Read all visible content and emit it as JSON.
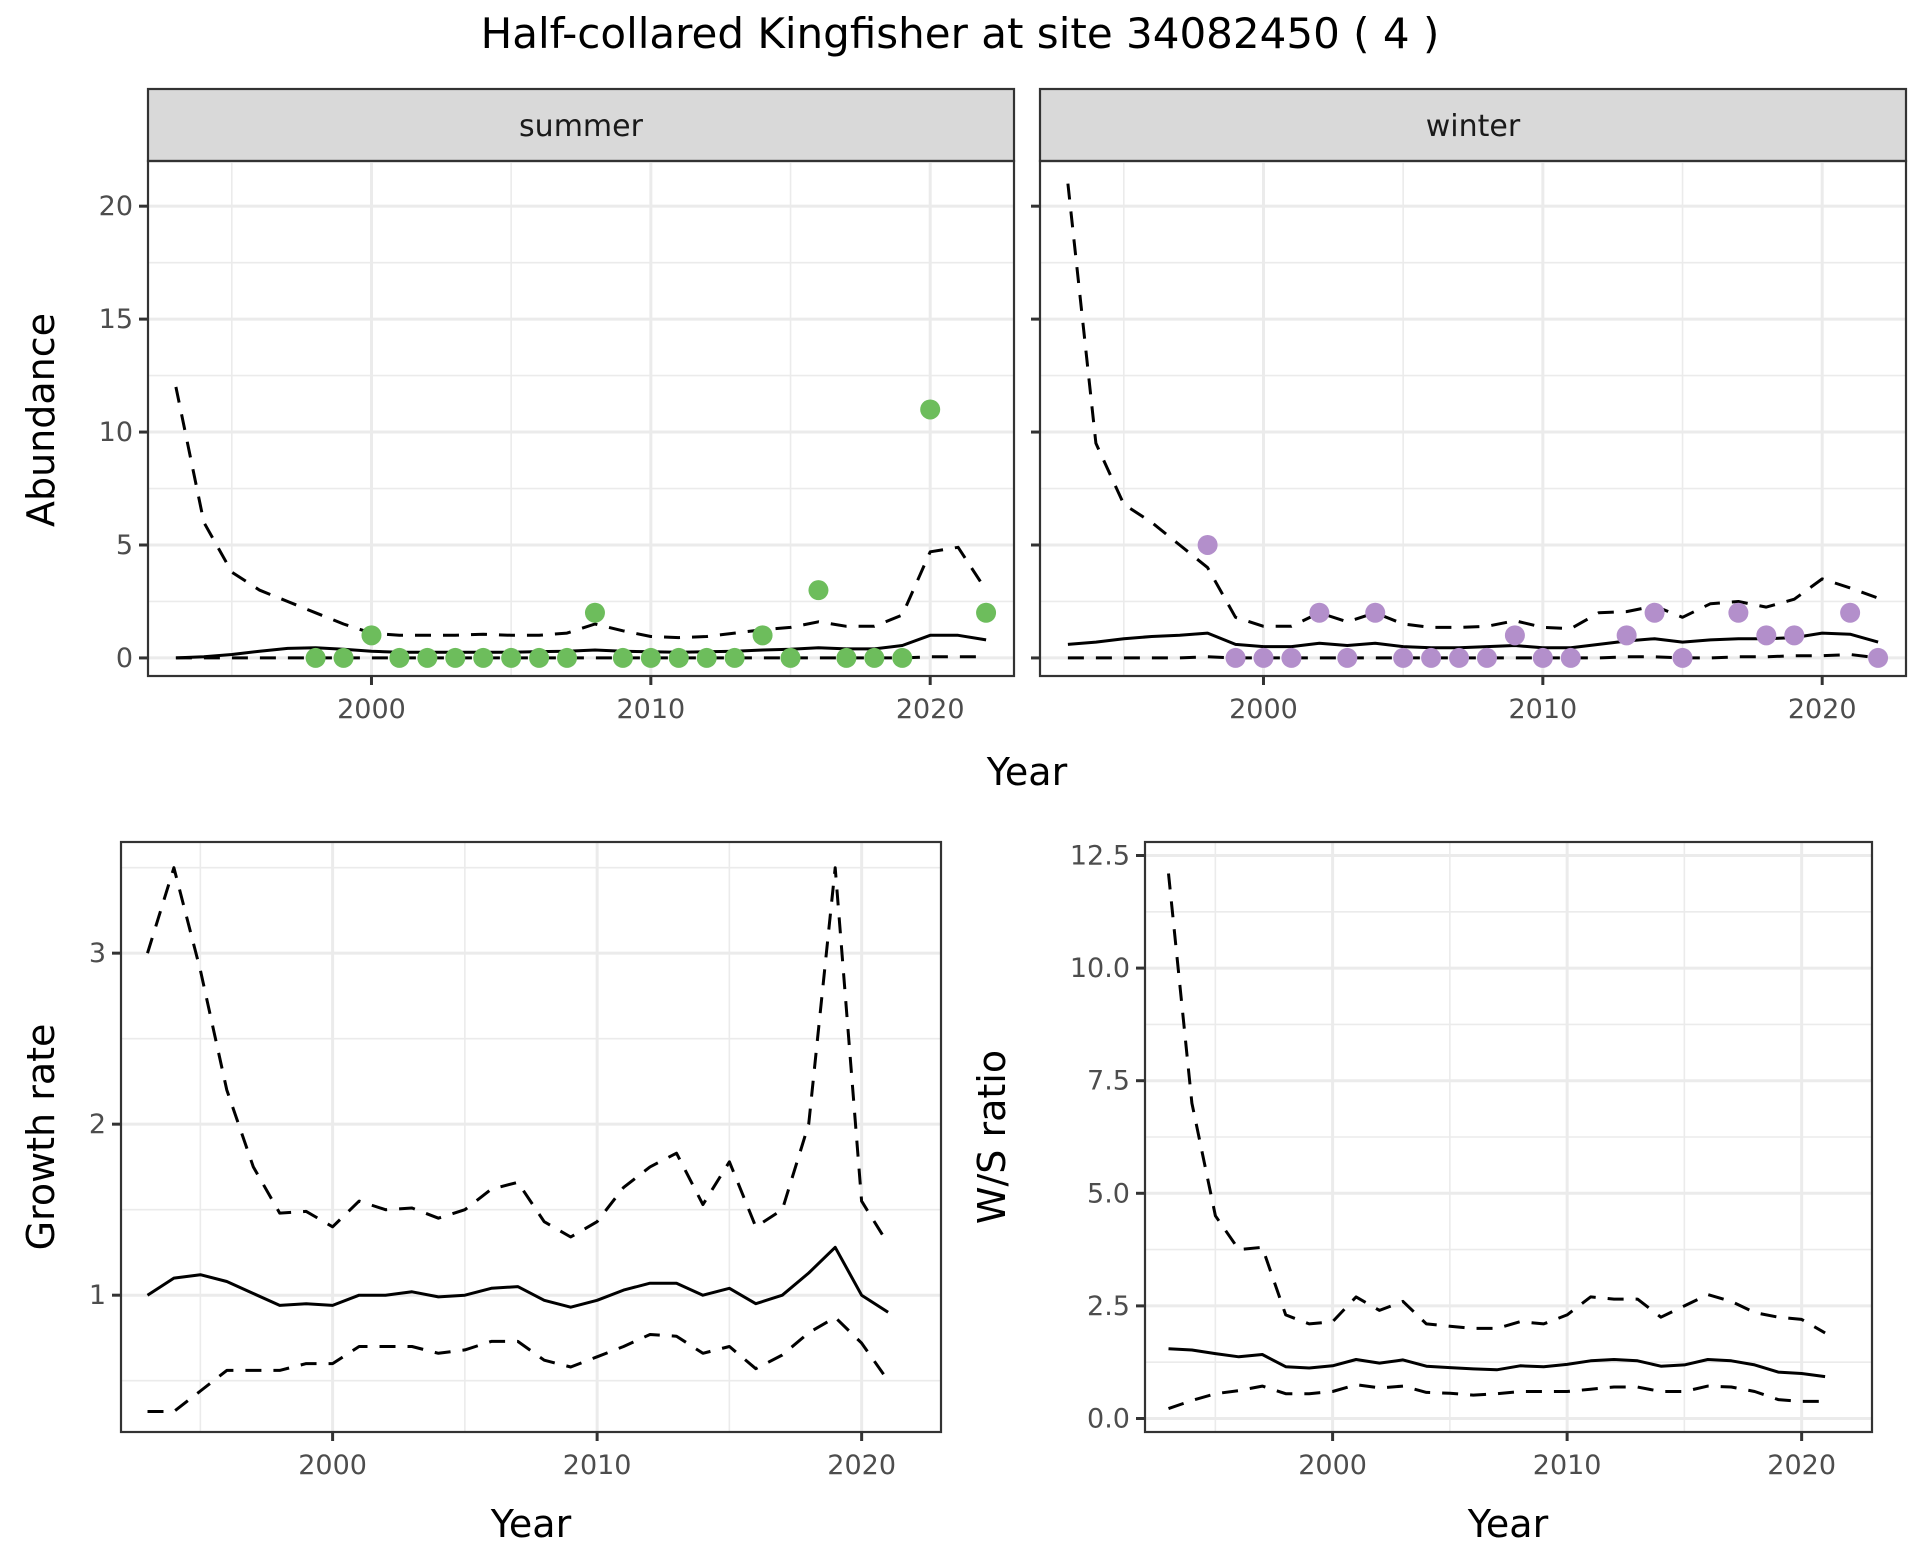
{
  "title": "Half-collared Kingfisher at site 34082450 ( 4 )",
  "colors": {
    "summer_points": "#6dbd5c",
    "winter_points": "#b38fcb",
    "lines": "#000000",
    "strip": "#d9d9d9",
    "grid": "#ebebeb"
  },
  "chart_data": [
    {
      "type": "scatter+line",
      "panel": "abundance",
      "facets": [
        "summer",
        "winter"
      ],
      "xlabel": "Year",
      "ylabel": "Abundance",
      "xlim": [
        1992,
        2023
      ],
      "ylim": [
        -0.8,
        22
      ],
      "xticks": [
        2000,
        2010,
        2020
      ],
      "yticks": [
        0,
        5,
        10,
        15,
        20
      ],
      "grid": true,
      "series": {
        "summer": {
          "points": {
            "x": [
              1998,
              1999,
              2000,
              2001,
              2002,
              2003,
              2004,
              2005,
              2006,
              2007,
              2008,
              2009,
              2010,
              2011,
              2012,
              2013,
              2014,
              2015,
              2016,
              2017,
              2018,
              2019,
              2020,
              2022
            ],
            "y": [
              0,
              0,
              1,
              0,
              0,
              0,
              0,
              0,
              0,
              0,
              2,
              0,
              0,
              0,
              0,
              0,
              1,
              0,
              3,
              0,
              0,
              0,
              11,
              2
            ]
          },
          "mean": {
            "x": [
              1993,
              1994,
              1995,
              1996,
              1997,
              1998,
              1999,
              2000,
              2001,
              2002,
              2003,
              2004,
              2005,
              2006,
              2007,
              2008,
              2009,
              2010,
              2011,
              2012,
              2013,
              2014,
              2015,
              2016,
              2017,
              2018,
              2019,
              2020,
              2021,
              2022
            ],
            "y": [
              0.0,
              0.05,
              0.15,
              0.3,
              0.42,
              0.45,
              0.38,
              0.3,
              0.25,
              0.25,
              0.25,
              0.25,
              0.25,
              0.28,
              0.3,
              0.35,
              0.3,
              0.27,
              0.25,
              0.27,
              0.3,
              0.35,
              0.38,
              0.45,
              0.4,
              0.4,
              0.55,
              1.0,
              1.0,
              0.8
            ]
          },
          "lower": {
            "x": [
              1993,
              1994,
              1995,
              1996,
              1997,
              1998,
              1999,
              2000,
              2001,
              2002,
              2003,
              2004,
              2005,
              2006,
              2007,
              2008,
              2009,
              2010,
              2011,
              2012,
              2013,
              2014,
              2015,
              2016,
              2017,
              2018,
              2019,
              2020,
              2021,
              2022
            ],
            "y": [
              0,
              0,
              0,
              0,
              0,
              0,
              0,
              0,
              0,
              0,
              0,
              0,
              0,
              0,
              0,
              0,
              0,
              0,
              0,
              0,
              0,
              0,
              0,
              0,
              0,
              0,
              0,
              0.05,
              0.05,
              0.05
            ]
          },
          "upper": {
            "x": [
              1993,
              1994,
              1995,
              1996,
              1997,
              1998,
              1999,
              2000,
              2001,
              2002,
              2003,
              2004,
              2005,
              2006,
              2007,
              2008,
              2009,
              2010,
              2011,
              2012,
              2013,
              2014,
              2015,
              2016,
              2017,
              2018,
              2019,
              2020,
              2021,
              2022
            ],
            "y": [
              12.0,
              6.0,
              3.8,
              3.0,
              2.5,
              2.0,
              1.5,
              1.1,
              1.0,
              1.0,
              1.0,
              1.05,
              1.0,
              1.0,
              1.1,
              1.5,
              1.2,
              0.95,
              0.9,
              0.95,
              1.1,
              1.25,
              1.35,
              1.6,
              1.4,
              1.4,
              1.9,
              4.7,
              4.9,
              3.0
            ]
          }
        },
        "winter": {
          "points": {
            "x": [
              1998,
              1999,
              2000,
              2001,
              2002,
              2003,
              2004,
              2005,
              2006,
              2007,
              2008,
              2009,
              2010,
              2011,
              2013,
              2014,
              2015,
              2017,
              2018,
              2019,
              2021,
              2022
            ],
            "y": [
              5,
              0,
              0,
              0,
              2,
              0,
              2,
              0,
              0,
              0,
              0,
              1,
              0,
              0,
              1,
              2,
              0,
              2,
              1,
              1,
              2,
              0
            ]
          },
          "mean": {
            "x": [
              1993,
              1994,
              1995,
              1996,
              1997,
              1998,
              1999,
              2000,
              2001,
              2002,
              2003,
              2004,
              2005,
              2006,
              2007,
              2008,
              2009,
              2010,
              2011,
              2012,
              2013,
              2014,
              2015,
              2016,
              2017,
              2018,
              2019,
              2020,
              2021,
              2022
            ],
            "y": [
              0.6,
              0.7,
              0.85,
              0.95,
              1.0,
              1.1,
              0.6,
              0.5,
              0.5,
              0.65,
              0.55,
              0.65,
              0.5,
              0.45,
              0.45,
              0.5,
              0.55,
              0.45,
              0.45,
              0.6,
              0.75,
              0.85,
              0.7,
              0.8,
              0.85,
              0.85,
              0.9,
              1.1,
              1.05,
              0.7
            ]
          },
          "lower": {
            "x": [
              1993,
              1994,
              1995,
              1996,
              1997,
              1998,
              1999,
              2000,
              2001,
              2002,
              2003,
              2004,
              2005,
              2006,
              2007,
              2008,
              2009,
              2010,
              2011,
              2012,
              2013,
              2014,
              2015,
              2016,
              2017,
              2018,
              2019,
              2020,
              2021,
              2022
            ],
            "y": [
              0,
              0,
              0,
              0,
              0,
              0.05,
              0,
              0,
              0,
              0,
              0,
              0,
              0,
              0,
              0,
              0,
              0,
              0,
              0,
              0,
              0.05,
              0.05,
              0,
              0,
              0.05,
              0.05,
              0.1,
              0.1,
              0.15,
              0.0
            ]
          },
          "upper": {
            "x": [
              1993,
              1994,
              1995,
              1996,
              1997,
              1998,
              1999,
              2000,
              2001,
              2002,
              2003,
              2004,
              2005,
              2006,
              2007,
              2008,
              2009,
              2010,
              2011,
              2012,
              2013,
              2014,
              2015,
              2016,
              2017,
              2018,
              2019,
              2020,
              2021,
              2022
            ],
            "y": [
              21.0,
              9.5,
              6.8,
              6.0,
              5.0,
              4.0,
              1.8,
              1.4,
              1.4,
              2.0,
              1.6,
              2.0,
              1.5,
              1.35,
              1.35,
              1.4,
              1.65,
              1.35,
              1.3,
              2.0,
              2.05,
              2.3,
              1.8,
              2.4,
              2.5,
              2.25,
              2.6,
              3.5,
              3.1,
              2.65
            ]
          }
        }
      }
    },
    {
      "type": "line",
      "panel": "growth-rate",
      "xlabel": "Year",
      "ylabel": "Growth rate",
      "xlim": [
        1992,
        2023
      ],
      "ylim": [
        0.2,
        3.65
      ],
      "xticks": [
        2000,
        2010,
        2020
      ],
      "yticks": [
        1,
        2,
        3
      ],
      "grid": true,
      "x": [
        1993,
        1994,
        1995,
        1996,
        1997,
        1998,
        1999,
        2000,
        2001,
        2002,
        2003,
        2004,
        2005,
        2006,
        2007,
        2008,
        2009,
        2010,
        2011,
        2012,
        2013,
        2014,
        2015,
        2016,
        2017,
        2018,
        2019,
        2020,
        2021
      ],
      "series": [
        {
          "name": "mean",
          "style": "solid",
          "values": [
            1.0,
            1.1,
            1.12,
            1.08,
            1.01,
            0.94,
            0.95,
            0.94,
            1.0,
            1.0,
            1.02,
            0.99,
            1.0,
            1.04,
            1.05,
            0.97,
            0.93,
            0.97,
            1.03,
            1.07,
            1.07,
            1.0,
            1.04,
            0.95,
            1.0,
            1.13,
            1.28,
            1.0,
            0.9
          ]
        },
        {
          "name": "upper",
          "style": "dashed",
          "values": [
            3.0,
            3.5,
            2.9,
            2.2,
            1.75,
            1.48,
            1.49,
            1.4,
            1.55,
            1.5,
            1.51,
            1.45,
            1.5,
            1.62,
            1.66,
            1.43,
            1.34,
            1.43,
            1.63,
            1.75,
            1.83,
            1.53,
            1.78,
            1.4,
            1.5,
            2.0,
            3.5,
            1.55,
            1.3
          ]
        },
        {
          "name": "lower",
          "style": "dashed",
          "values": [
            0.32,
            0.32,
            0.44,
            0.56,
            0.56,
            0.56,
            0.6,
            0.6,
            0.7,
            0.7,
            0.7,
            0.66,
            0.68,
            0.73,
            0.73,
            0.62,
            0.58,
            0.64,
            0.7,
            0.77,
            0.76,
            0.66,
            0.7,
            0.57,
            0.65,
            0.78,
            0.87,
            0.72,
            0.5
          ]
        }
      ]
    },
    {
      "type": "line",
      "panel": "ws-ratio",
      "xlabel": "Year",
      "ylabel": "W/S ratio",
      "xlim": [
        1992,
        2023
      ],
      "ylim": [
        -0.3,
        12.8
      ],
      "xticks": [
        2000,
        2010,
        2020
      ],
      "yticks": [
        0.0,
        2.5,
        5.0,
        7.5,
        10.0,
        12.5
      ],
      "ytick_labels": [
        "0.0",
        "2.5",
        "5.0",
        "7.5",
        "10.0",
        "12.5"
      ],
      "grid": true,
      "x": [
        1993,
        1994,
        1995,
        1996,
        1997,
        1998,
        1999,
        2000,
        2001,
        2002,
        2003,
        2004,
        2005,
        2006,
        2007,
        2008,
        2009,
        2010,
        2011,
        2012,
        2013,
        2014,
        2015,
        2016,
        2017,
        2018,
        2019,
        2020,
        2021
      ],
      "series": [
        {
          "name": "mean",
          "style": "solid",
          "values": [
            1.55,
            1.52,
            1.44,
            1.37,
            1.42,
            1.15,
            1.12,
            1.17,
            1.31,
            1.23,
            1.3,
            1.16,
            1.13,
            1.1,
            1.08,
            1.17,
            1.15,
            1.2,
            1.28,
            1.31,
            1.28,
            1.16,
            1.19,
            1.31,
            1.28,
            1.19,
            1.03,
            1.0,
            0.93
          ]
        },
        {
          "name": "upper",
          "style": "dashed",
          "values": [
            12.1,
            7.0,
            4.5,
            3.75,
            3.8,
            2.3,
            2.1,
            2.15,
            2.7,
            2.4,
            2.6,
            2.1,
            2.05,
            2.0,
            2.0,
            2.15,
            2.1,
            2.3,
            2.7,
            2.65,
            2.65,
            2.25,
            2.5,
            2.75,
            2.6,
            2.35,
            2.25,
            2.2,
            1.9
          ]
        },
        {
          "name": "lower",
          "style": "dashed",
          "values": [
            0.22,
            0.4,
            0.55,
            0.62,
            0.72,
            0.55,
            0.55,
            0.6,
            0.75,
            0.68,
            0.72,
            0.58,
            0.56,
            0.52,
            0.55,
            0.6,
            0.6,
            0.6,
            0.65,
            0.7,
            0.7,
            0.6,
            0.6,
            0.72,
            0.7,
            0.6,
            0.42,
            0.38,
            0.38
          ]
        }
      ]
    }
  ]
}
